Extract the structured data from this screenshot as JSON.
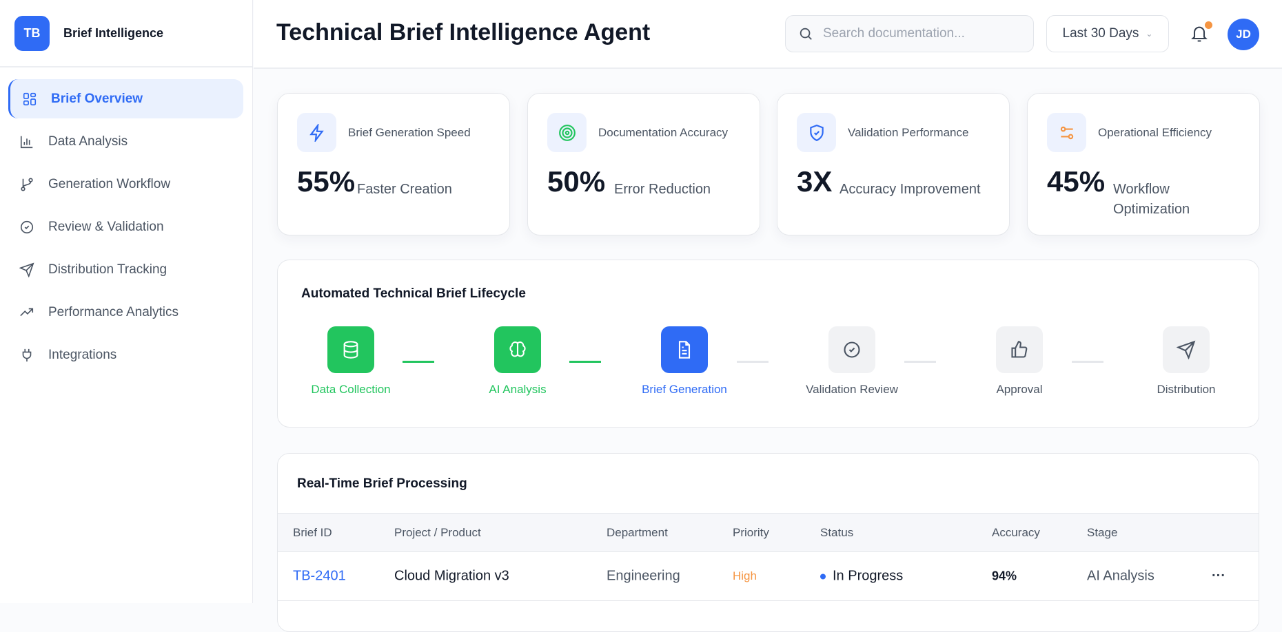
{
  "sidebar": {
    "logo": "TB",
    "brand": "Brief Intelligence",
    "items": [
      {
        "label": "Brief Overview",
        "icon": "grid-icon",
        "active": true
      },
      {
        "label": "Data Analysis",
        "icon": "bar-chart-icon"
      },
      {
        "label": "Generation Workflow",
        "icon": "branch-icon"
      },
      {
        "label": "Review & Validation",
        "icon": "check-circle-icon"
      },
      {
        "label": "Distribution Tracking",
        "icon": "send-icon"
      },
      {
        "label": "Performance Analytics",
        "icon": "trending-up-icon"
      },
      {
        "label": "Integrations",
        "icon": "plug-icon"
      }
    ]
  },
  "header": {
    "title": "Technical Brief Intelligence Agent",
    "search_placeholder": "Search documentation...",
    "range": "Last 30 Days",
    "avatar": "JD"
  },
  "metrics": [
    {
      "label": "Brief Generation Speed",
      "value": "55%",
      "sub": "Faster Creation",
      "icon": "lightning-icon",
      "color": "#2f6bf5"
    },
    {
      "label": "Documentation Accuracy",
      "value": "50%",
      "sub": "Error Reduction",
      "icon": "target-icon",
      "color": "#22c55e"
    },
    {
      "label": "Validation Performance",
      "value": "3X",
      "sub": "Accuracy Improvement",
      "icon": "shield-check-icon",
      "color": "#2f6bf5"
    },
    {
      "label": "Operational Efficiency",
      "value": "45%",
      "sub": "Workflow Optimization",
      "icon": "sliders-icon",
      "color": "#f59542"
    }
  ],
  "lifecycle": {
    "title": "Automated Technical Brief Lifecycle",
    "steps": [
      {
        "label": "Data Collection",
        "state": "done",
        "icon": "database-icon"
      },
      {
        "label": "AI Analysis",
        "state": "done",
        "icon": "brain-icon"
      },
      {
        "label": "Brief Generation",
        "state": "active",
        "icon": "document-icon"
      },
      {
        "label": "Validation Review",
        "state": "pending",
        "icon": "check-circle-icon"
      },
      {
        "label": "Approval",
        "state": "pending",
        "icon": "thumbs-up-icon"
      },
      {
        "label": "Distribution",
        "state": "pending",
        "icon": "send-icon"
      }
    ]
  },
  "table": {
    "title": "Real-Time Brief Processing",
    "columns": [
      "Brief ID",
      "Project / Product",
      "Department",
      "Priority",
      "Status",
      "Accuracy",
      "Stage"
    ],
    "rows": [
      {
        "id": "TB-2401",
        "project": "Cloud Migration v3",
        "department": "Engineering",
        "priority": "High",
        "status": "In Progress",
        "accuracy": "94%",
        "stage": "AI Analysis",
        "actions": "···"
      }
    ]
  },
  "colors": {
    "accent": "#2f6bf5",
    "success": "#22c55e",
    "warning": "#f59542"
  }
}
